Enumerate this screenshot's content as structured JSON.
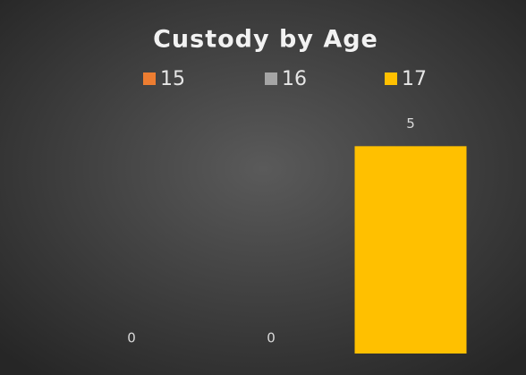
{
  "chart_data": {
    "type": "bar",
    "title": "Custody by Age",
    "categories": [
      null
    ],
    "series": [
      {
        "name": "15",
        "color": "#ed7d31",
        "values": [
          0
        ]
      },
      {
        "name": "16",
        "color": "#a5a5a5",
        "values": [
          0
        ]
      },
      {
        "name": "17",
        "color": "#ffc000",
        "values": [
          5
        ]
      }
    ],
    "ylim": [
      0,
      6
    ]
  }
}
